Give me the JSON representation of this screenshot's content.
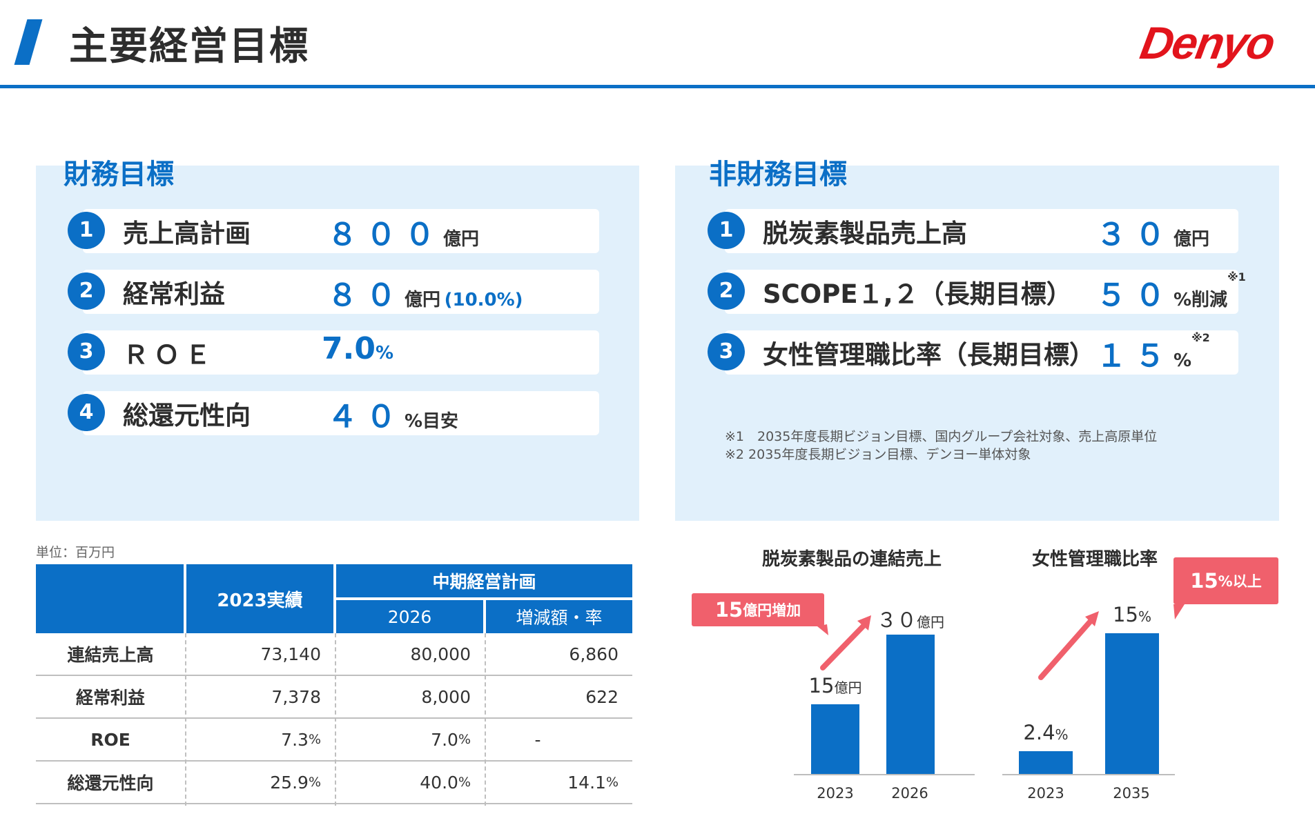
{
  "header": {
    "title": "主要経営目標",
    "logo": "Denyo",
    "accent": "#0b6fc6",
    "logo_color": "#e2141c"
  },
  "financial": {
    "title": "財務目標",
    "items": [
      {
        "no": "1",
        "label": "売上高計画",
        "value": "８００",
        "unit": "億円",
        "extra": ""
      },
      {
        "no": "2",
        "label": "経常利益",
        "value": "８０",
        "unit": "億円",
        "extra": "(10.0%)"
      },
      {
        "no": "3",
        "label": "ＲＯＥ",
        "value": "7.0",
        "unit": "%",
        "extra": ""
      },
      {
        "no": "4",
        "label": "総還元性向",
        "value": "４０",
        "unit": "%目安",
        "extra": ""
      }
    ]
  },
  "nonfinancial": {
    "title": "非財務目標",
    "items": [
      {
        "no": "1",
        "label": "脱炭素製品売上高",
        "value": "３０",
        "unit": "億円",
        "note": ""
      },
      {
        "no": "2",
        "label": "SCOPE１,２（長期目標）",
        "value": "５０",
        "unit": "%削減",
        "note": "※1"
      },
      {
        "no": "3",
        "label": "女性管理職比率（長期目標）",
        "value": "１５",
        "unit": "%",
        "note": "※2"
      }
    ],
    "notes": [
      "※1　2035年度長期ビジョン目標、国内グループ会社対象、売上高原単位",
      "※2  2035年度長期ビジョン目標、デンヨー単体対象"
    ]
  },
  "table": {
    "unit_label": "単位：百万円",
    "header_2023": "2023実績",
    "header_plan": "中期経営計画",
    "header_2026": "2026",
    "header_change": "増減額・率",
    "rows": [
      {
        "label": "連結売上高",
        "a2023": "73,140",
        "a2026": "80,000",
        "change": "6,860",
        "a2023_pct": "",
        "a2026_pct": "",
        "change_pct": ""
      },
      {
        "label": "経常利益",
        "a2023": "7,378",
        "a2026": "8,000",
        "change": "622",
        "a2023_pct": "",
        "a2026_pct": "",
        "change_pct": ""
      },
      {
        "label": "ROE",
        "a2023": "7.3",
        "a2026": "7.0",
        "change": "-",
        "a2023_pct": "%",
        "a2026_pct": "%",
        "change_pct": ""
      },
      {
        "label": "総還元性向",
        "a2023": "25.9",
        "a2026": "40.0",
        "change": "14.1",
        "a2023_pct": "%",
        "a2026_pct": "%",
        "change_pct": "%"
      }
    ]
  },
  "chart_data": [
    {
      "type": "bar",
      "title": "脱炭素製品の連結売上",
      "categories": [
        "2023",
        "2026"
      ],
      "values": [
        15,
        30
      ],
      "value_labels": [
        "15",
        "３０"
      ],
      "unit": "億円",
      "callout_value": "15",
      "callout_unit": "億円増加",
      "color": "#0b6fc6",
      "callout_color": "#f0606c"
    },
    {
      "type": "bar",
      "title": "女性管理職比率",
      "categories": [
        "2023",
        "2035"
      ],
      "values": [
        2.4,
        15
      ],
      "value_labels": [
        "2.4",
        "15"
      ],
      "unit": "%",
      "callout_value": "15",
      "callout_unit": "%以上",
      "color": "#0b6fc6",
      "callout_color": "#f0606c"
    }
  ]
}
